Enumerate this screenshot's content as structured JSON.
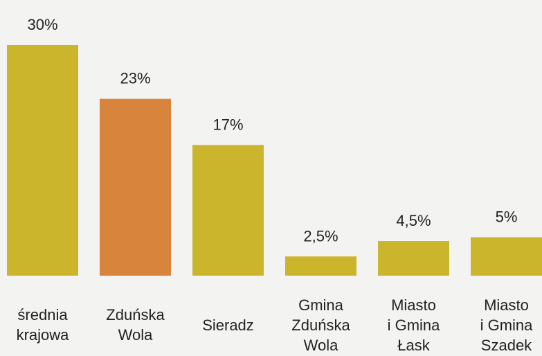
{
  "chart_data": {
    "type": "bar",
    "categories": [
      "średnia\nkrajowa",
      "Zduńska\nWola",
      "Sieradz",
      "Gmina\nZduńska\nWola",
      "Miasto\ni Gmina\nŁask",
      "Miasto\ni Gmina\nSzadek"
    ],
    "values": [
      30,
      23,
      17,
      2.5,
      4.5,
      5
    ],
    "value_labels": [
      "30%",
      "23%",
      "17%",
      "2,5%",
      "4,5%",
      "5%"
    ],
    "colors": [
      "#cbb52c",
      "#d9843c",
      "#cbb52c",
      "#cbb52c",
      "#cbb52c",
      "#cbb52c"
    ]
  }
}
